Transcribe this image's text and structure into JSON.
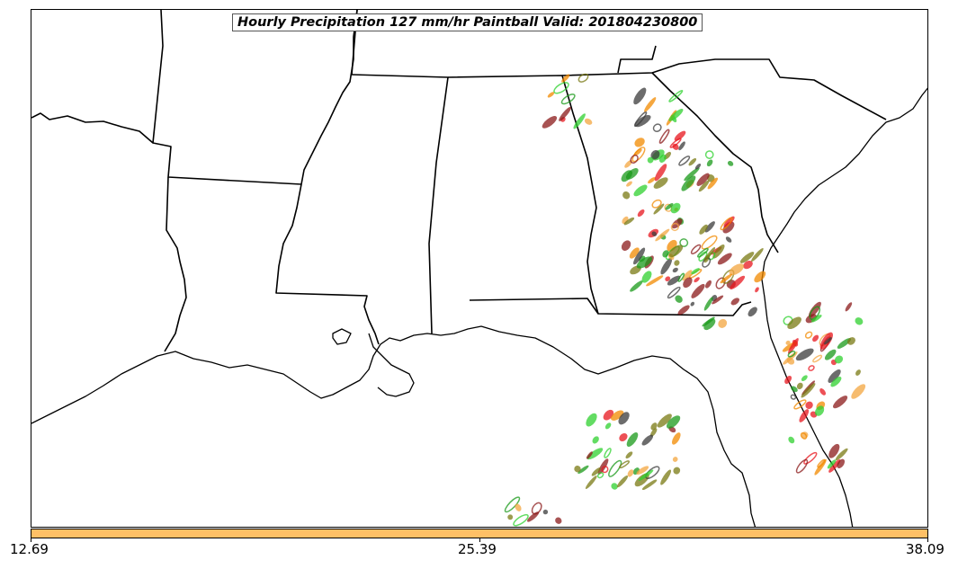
{
  "title": "Hourly Precipitation 127 mm/hr Paintball Valid: 201804230800",
  "colorbar": {
    "min_label": "12.69",
    "mid_label": "25.39",
    "max_label": "38.09",
    "color": "#ffc066"
  },
  "member_colors": [
    "#e8161e",
    "#f28a00",
    "#1a9a1a",
    "#8b1a1a",
    "#7a7a14",
    "#f4a640",
    "#3c3c3c",
    "#2fd12f"
  ],
  "colors": {
    "border": "#000000",
    "background": "#ffffff"
  }
}
